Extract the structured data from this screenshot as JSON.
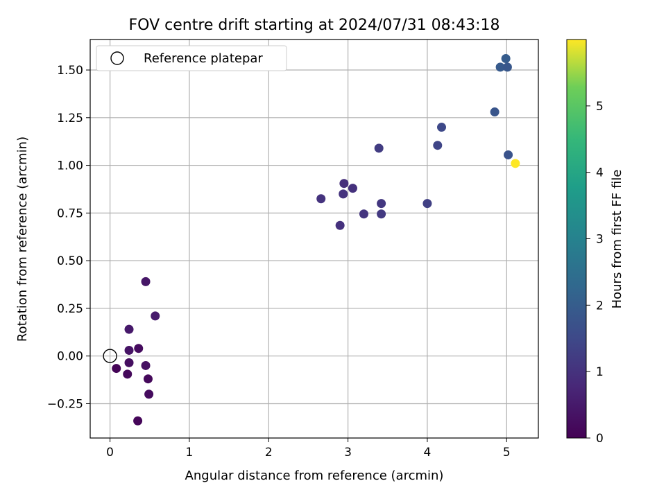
{
  "chart_data": {
    "type": "scatter",
    "title": "FOV centre drift starting at 2024/07/31 08:43:18",
    "xlabel": "Angular distance from reference (arcmin)",
    "ylabel": "Rotation from reference (arcmin)",
    "xlim": [
      -0.25,
      5.4
    ],
    "ylim": [
      -0.43,
      1.66
    ],
    "xticks": [
      0,
      1,
      2,
      3,
      4,
      5
    ],
    "xtick_labels": [
      "0",
      "1",
      "2",
      "3",
      "4",
      "5"
    ],
    "yticks": [
      -0.25,
      0.0,
      0.25,
      0.5,
      0.75,
      1.0,
      1.25,
      1.5
    ],
    "ytick_labels": [
      "−0.25",
      "0.00",
      "0.25",
      "0.50",
      "0.75",
      "1.00",
      "1.25",
      "1.50"
    ],
    "grid": true,
    "legend": {
      "position": "top-left",
      "entries": [
        "Reference platepar"
      ]
    },
    "reference_point": {
      "x": 0.0,
      "y": 0.0,
      "label": "Reference platepar"
    },
    "colorbar": {
      "label": "Hours from first FF file",
      "colormap": "viridis",
      "range": [
        0,
        6.0
      ],
      "ticks": [
        0,
        1,
        2,
        3,
        4,
        5
      ],
      "tick_labels": [
        "0",
        "1",
        "2",
        "3",
        "4",
        "5"
      ]
    },
    "series": [
      {
        "points": [
          {
            "x": 0.08,
            "y": -0.065,
            "c": 0.05
          },
          {
            "x": 0.22,
            "y": -0.095,
            "c": 0.15
          },
          {
            "x": 0.24,
            "y": -0.035,
            "c": 0.25
          },
          {
            "x": 0.24,
            "y": 0.03,
            "c": 0.35
          },
          {
            "x": 0.24,
            "y": 0.14,
            "c": 0.45
          },
          {
            "x": 0.36,
            "y": 0.04,
            "c": 0.2
          },
          {
            "x": 0.35,
            "y": -0.34,
            "c": 0.1
          },
          {
            "x": 0.45,
            "y": -0.05,
            "c": 0.3
          },
          {
            "x": 0.48,
            "y": -0.12,
            "c": 0.15
          },
          {
            "x": 0.49,
            "y": -0.2,
            "c": 0.2
          },
          {
            "x": 0.45,
            "y": 0.39,
            "c": 0.4
          },
          {
            "x": 0.57,
            "y": 0.21,
            "c": 0.5
          },
          {
            "x": 2.66,
            "y": 0.825,
            "c": 1.0
          },
          {
            "x": 2.9,
            "y": 0.685,
            "c": 0.95
          },
          {
            "x": 2.94,
            "y": 0.85,
            "c": 1.0
          },
          {
            "x": 2.95,
            "y": 0.905,
            "c": 0.9
          },
          {
            "x": 3.06,
            "y": 0.88,
            "c": 0.95
          },
          {
            "x": 3.2,
            "y": 0.745,
            "c": 1.05
          },
          {
            "x": 3.39,
            "y": 1.09,
            "c": 1.2
          },
          {
            "x": 3.42,
            "y": 0.8,
            "c": 1.1
          },
          {
            "x": 3.42,
            "y": 0.745,
            "c": 1.15
          },
          {
            "x": 4.0,
            "y": 0.8,
            "c": 1.3
          },
          {
            "x": 4.13,
            "y": 1.105,
            "c": 1.4
          },
          {
            "x": 4.18,
            "y": 1.2,
            "c": 1.5
          },
          {
            "x": 4.85,
            "y": 1.28,
            "c": 1.8
          },
          {
            "x": 4.92,
            "y": 1.515,
            "c": 1.9
          },
          {
            "x": 4.99,
            "y": 1.56,
            "c": 1.95
          },
          {
            "x": 5.01,
            "y": 1.515,
            "c": 1.85
          },
          {
            "x": 5.02,
            "y": 1.055,
            "c": 1.75
          },
          {
            "x": 5.11,
            "y": 1.01,
            "c": 6.0
          }
        ]
      }
    ]
  }
}
